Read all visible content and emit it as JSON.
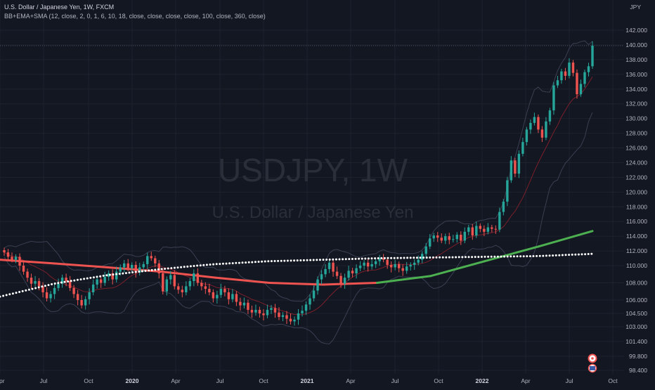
{
  "header": {
    "symbol_line": "U.S. Dollar / Japanese Yen, 1W, FXCM",
    "indicator_line": "BB+EMA+SMA (12, close, 2, 0, 1, 6, 10, 18, close, close, close, close, 100, close, 360, close)",
    "currency": "JPY"
  },
  "watermark": {
    "symbol": "USDJPY, 1W",
    "name": "U.S. Dollar / Japanese Yen"
  },
  "colors": {
    "background": "#131722",
    "grid": "#1e222d",
    "up": "#26a69a",
    "down": "#ef5350",
    "ma_long_below": "#ef5350",
    "ma_long_above": "#4caf50",
    "dots": "#ffffff",
    "band": "#3a3f52",
    "text": "#b2b5be"
  },
  "chart_data": {
    "type": "candlestick",
    "title": "USDJPY, 1W",
    "y_axis_ticks": [
      "142.000",
      "140.000",
      "138.000",
      "136.000",
      "134.000",
      "132.000",
      "130.000",
      "128.000",
      "126.000",
      "124.000",
      "122.000",
      "120.000",
      "118.000",
      "116.000",
      "114.000",
      "112.000",
      "110.000",
      "108.000",
      "106.000",
      "104.500",
      "103.000",
      "101.400",
      "99.800",
      "98.400"
    ],
    "x_axis_ticks": [
      "Apr",
      "Jul",
      "Oct",
      "2020",
      "Apr",
      "Jul",
      "Oct",
      "2021",
      "Apr",
      "Jul",
      "Oct",
      "2022",
      "Apr",
      "Jul",
      "Oct"
    ],
    "last_price": 139.9,
    "series": [
      {
        "name": "weekly candles",
        "closes": [
          111.8,
          111.2,
          110.8,
          111.2,
          110.0,
          109.3,
          108.6,
          107.9,
          108.2,
          107.6,
          106.9,
          106.2,
          106.7,
          107.4,
          107.9,
          108.6,
          108.2,
          107.4,
          106.7,
          106.0,
          105.4,
          106.1,
          106.9,
          107.8,
          108.4,
          108.0,
          108.7,
          109.1,
          108.4,
          109.3,
          109.8,
          110.3,
          109.7,
          110.1,
          109.2,
          109.8,
          110.2,
          111.3,
          111.0,
          110.3,
          109.1,
          107.0,
          108.4,
          108.9,
          107.6,
          107.2,
          106.9,
          107.6,
          108.2,
          109.1,
          108.0,
          107.6,
          107.3,
          106.9,
          106.2,
          106.6,
          107.3,
          106.9,
          106.1,
          106.7,
          105.8,
          105.4,
          105.7,
          104.9,
          104.6,
          104.9,
          104.5,
          104.3,
          104.9,
          105.1,
          104.6,
          104.1,
          104.3,
          103.9,
          103.6,
          103.8,
          104.5,
          104.8,
          105.5,
          106.2,
          107.1,
          108.4,
          109.0,
          109.6,
          110.4,
          109.3,
          108.8,
          107.9,
          108.6,
          109.4,
          109.1,
          109.7,
          110.0,
          110.4,
          109.9,
          110.2,
          110.6,
          111.0,
          110.8,
          110.1,
          109.8,
          110.2,
          109.7,
          109.4,
          109.9,
          110.1,
          110.4,
          110.8,
          111.6,
          112.6,
          113.7,
          114.1,
          113.8,
          113.4,
          114.0,
          113.5,
          113.6,
          114.2,
          113.4,
          114.6,
          115.2,
          114.1,
          115.4,
          115.0,
          114.6,
          115.2,
          115.0,
          114.9,
          117.3,
          118.7,
          121.6,
          124.3,
          122.5,
          125.2,
          126.8,
          128.5,
          129.4,
          130.2,
          128.5,
          127.4,
          129.6,
          131.1,
          134.5,
          135.2,
          136.4,
          135.8,
          137.6,
          136.2,
          133.3,
          134.7,
          136.3,
          137.1,
          139.9
        ]
      },
      {
        "name": "SMA 100",
        "values": [
          110.8,
          110.3,
          109.8,
          109.3,
          108.6,
          108.0,
          107.8,
          108.0,
          108.8,
          110.6,
          112.6,
          114.7
        ]
      },
      {
        "name": "SMA 360",
        "values": [
          106.4,
          107.9,
          108.9,
          109.6,
          110.2,
          110.6,
          110.8,
          111.0,
          111.1,
          111.2,
          111.3,
          111.6
        ]
      }
    ],
    "grid": true
  }
}
